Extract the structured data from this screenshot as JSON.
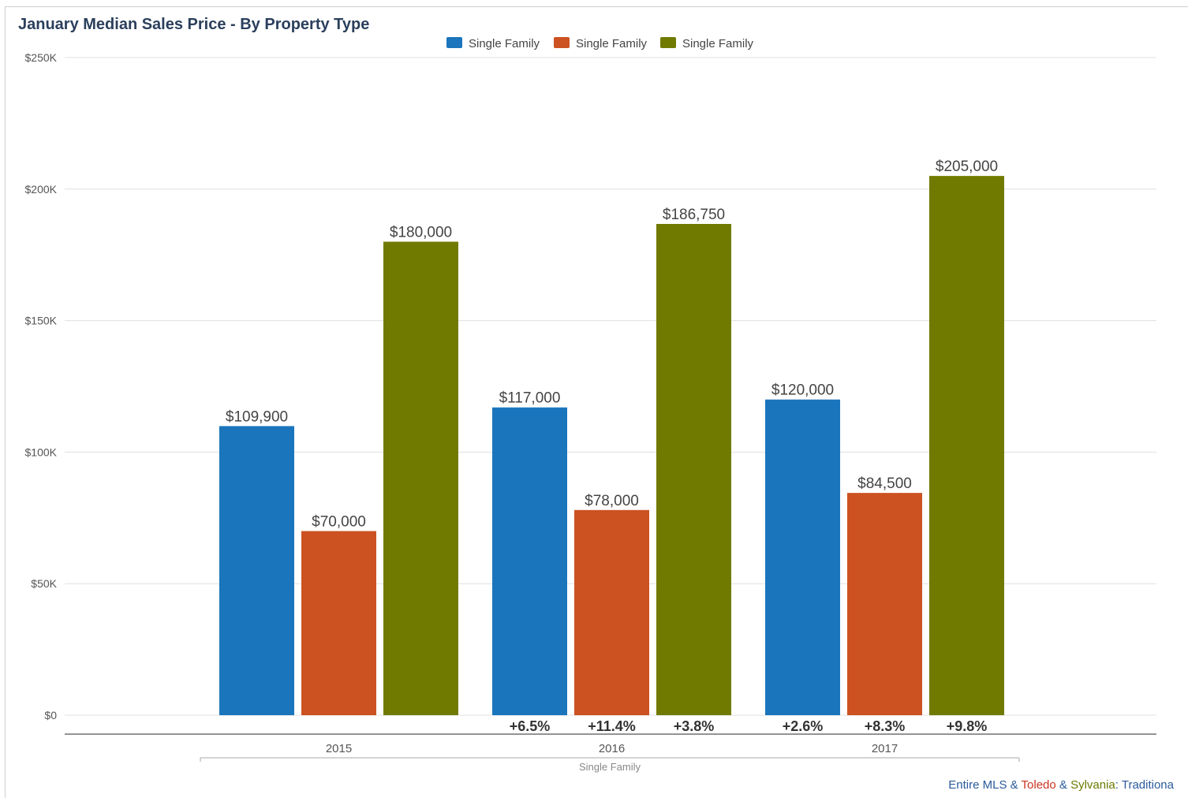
{
  "chart_data": {
    "type": "bar",
    "title": "January Median Sales Price - By Property Type",
    "categories": [
      "2015",
      "2016",
      "2017"
    ],
    "group_label": "Single Family",
    "series": [
      {
        "name": "Single Family",
        "color": "#1b75bc",
        "values": [
          109900,
          117000,
          120000
        ],
        "labels": [
          "$109,900",
          "$117,000",
          "$120,000"
        ],
        "changes": [
          "",
          "+6.5%",
          "+2.6%"
        ]
      },
      {
        "name": "Single Family",
        "color": "#cc5221",
        "values": [
          70000,
          78000,
          84500
        ],
        "labels": [
          "$70,000",
          "$78,000",
          "$84,500"
        ],
        "changes": [
          "",
          "+11.4%",
          "+8.3%"
        ]
      },
      {
        "name": "Single Family",
        "color": "#717a00",
        "values": [
          180000,
          186750,
          205000
        ],
        "labels": [
          "$180,000",
          "$186,750",
          "$205,000"
        ],
        "changes": [
          "",
          "+3.8%",
          "+9.8%"
        ]
      }
    ],
    "ylim": [
      0,
      250000
    ],
    "yticks": [
      {
        "value": 0,
        "label": "$0"
      },
      {
        "value": 50000,
        "label": "$50K"
      },
      {
        "value": 100000,
        "label": "$100K"
      },
      {
        "value": 150000,
        "label": "$150K"
      },
      {
        "value": 200000,
        "label": "$200K"
      },
      {
        "value": 250000,
        "label": "$250K"
      }
    ],
    "grid": true,
    "legend_position": "top-center"
  },
  "footer": {
    "parts": [
      {
        "text": "Entire MLS",
        "color": "#2a5a9a"
      },
      {
        "text": " & ",
        "color": "#2a5a9a"
      },
      {
        "text": "Toledo",
        "color": "#cc3322"
      },
      {
        "text": " & ",
        "color": "#2a5a9a"
      },
      {
        "text": "Sylvania",
        "color": "#6b7a00"
      },
      {
        "text": ": Traditiona",
        "color": "#2a5a9a"
      }
    ]
  }
}
